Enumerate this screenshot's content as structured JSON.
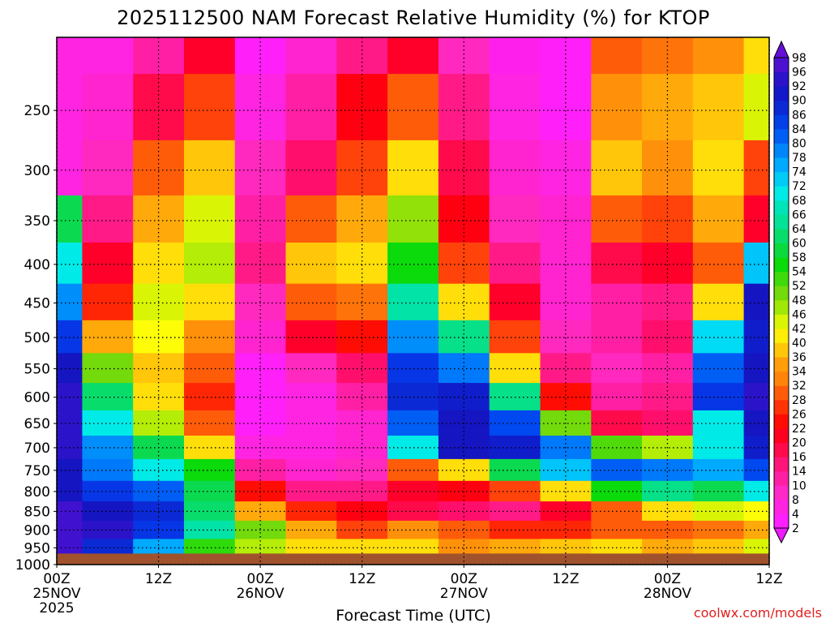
{
  "chart_data": {
    "type": "heatmap",
    "title": "2025112500 NAM Forecast Relative Humidity (%) for KTOP",
    "xlabel": "Forecast Time (UTC)",
    "ylabel": "",
    "x_hours": [
      0,
      6,
      12,
      18,
      24,
      30,
      36,
      42,
      48,
      54,
      60,
      66,
      72,
      78,
      84
    ],
    "pressure_levels": [
      200,
      250,
      300,
      350,
      400,
      450,
      500,
      550,
      600,
      650,
      700,
      750,
      800,
      850,
      900,
      950,
      1000
    ],
    "rh_percent": [
      [
        6,
        6,
        12,
        20,
        4,
        8,
        14,
        20,
        10,
        5,
        4,
        30,
        32,
        34,
        40
      ],
      [
        6,
        8,
        18,
        28,
        6,
        12,
        22,
        30,
        14,
        6,
        4,
        34,
        36,
        38,
        44
      ],
      [
        6,
        10,
        30,
        38,
        10,
        16,
        28,
        40,
        18,
        8,
        6,
        38,
        34,
        40,
        28
      ],
      [
        60,
        14,
        36,
        44,
        12,
        30,
        36,
        48,
        22,
        10,
        8,
        30,
        28,
        36,
        20
      ],
      [
        70,
        20,
        40,
        46,
        14,
        38,
        40,
        56,
        28,
        14,
        8,
        18,
        20,
        30,
        74
      ],
      [
        78,
        26,
        44,
        40,
        10,
        30,
        32,
        66,
        40,
        20,
        8,
        12,
        14,
        40,
        92
      ],
      [
        86,
        36,
        42,
        34,
        8,
        20,
        24,
        78,
        64,
        28,
        10,
        12,
        16,
        72,
        90
      ],
      [
        92,
        50,
        38,
        30,
        4,
        10,
        16,
        86,
        80,
        40,
        14,
        10,
        12,
        82,
        92
      ],
      [
        94,
        62,
        40,
        26,
        4,
        6,
        12,
        88,
        90,
        64,
        24,
        12,
        14,
        86,
        94
      ],
      [
        94,
        70,
        46,
        30,
        4,
        6,
        8,
        82,
        92,
        84,
        50,
        18,
        16,
        70,
        92
      ],
      [
        94,
        78,
        60,
        40,
        6,
        6,
        8,
        70,
        92,
        90,
        80,
        52,
        46,
        70,
        90
      ],
      [
        92,
        80,
        70,
        56,
        12,
        8,
        10,
        30,
        40,
        60,
        74,
        82,
        80,
        76,
        84
      ],
      [
        92,
        86,
        82,
        60,
        24,
        14,
        14,
        20,
        22,
        28,
        40,
        56,
        64,
        60,
        70
      ],
      [
        96,
        92,
        88,
        62,
        36,
        26,
        22,
        18,
        16,
        14,
        20,
        30,
        40,
        44,
        42
      ],
      [
        96,
        94,
        86,
        66,
        50,
        36,
        28,
        34,
        30,
        26,
        26,
        30,
        30,
        32,
        36
      ],
      [
        96,
        88,
        76,
        54,
        46,
        40,
        40,
        40,
        34,
        36,
        38,
        40,
        36,
        38,
        44
      ],
      [
        null,
        null,
        null,
        null,
        null,
        null,
        null,
        null,
        null,
        null,
        null,
        null,
        null,
        null,
        null
      ]
    ],
    "surface_pressure_hpa": 967,
    "xlim_hours": [
      0,
      84
    ],
    "ylim_hpa": [
      1000,
      200
    ],
    "y_scale": "log-pressure",
    "grid": true,
    "colorbar_levels": [
      2,
      4,
      8,
      10,
      14,
      16,
      20,
      22,
      26,
      28,
      32,
      34,
      36,
      40,
      42,
      46,
      48,
      52,
      54,
      58,
      60,
      64,
      66,
      68,
      72,
      74,
      78,
      80,
      84,
      86,
      90,
      92,
      96,
      98
    ],
    "y_ticks": [
      "250",
      "300",
      "350",
      "400",
      "450",
      "500",
      "550",
      "600",
      "650",
      "700",
      "750",
      "800",
      "850",
      "900",
      "950",
      "1000"
    ],
    "x_ticks": [
      {
        "hours": 0,
        "label": "00Z",
        "date": "25NOV",
        "year": "2025"
      },
      {
        "hours": 12,
        "label": "12Z",
        "date": "",
        "year": ""
      },
      {
        "hours": 24,
        "label": "00Z",
        "date": "26NOV",
        "year": ""
      },
      {
        "hours": 36,
        "label": "12Z",
        "date": "",
        "year": ""
      },
      {
        "hours": 48,
        "label": "00Z",
        "date": "27NOV",
        "year": ""
      },
      {
        "hours": 60,
        "label": "12Z",
        "date": "",
        "year": ""
      },
      {
        "hours": 72,
        "label": "00Z",
        "date": "28NOV",
        "year": ""
      },
      {
        "hours": 84,
        "label": "12Z",
        "date": "",
        "year": ""
      }
    ],
    "colors": {
      "ground": "#a0522d",
      "grid": "#000000",
      "credit": "#e02020"
    }
  },
  "credit": "coolwx.com/models"
}
